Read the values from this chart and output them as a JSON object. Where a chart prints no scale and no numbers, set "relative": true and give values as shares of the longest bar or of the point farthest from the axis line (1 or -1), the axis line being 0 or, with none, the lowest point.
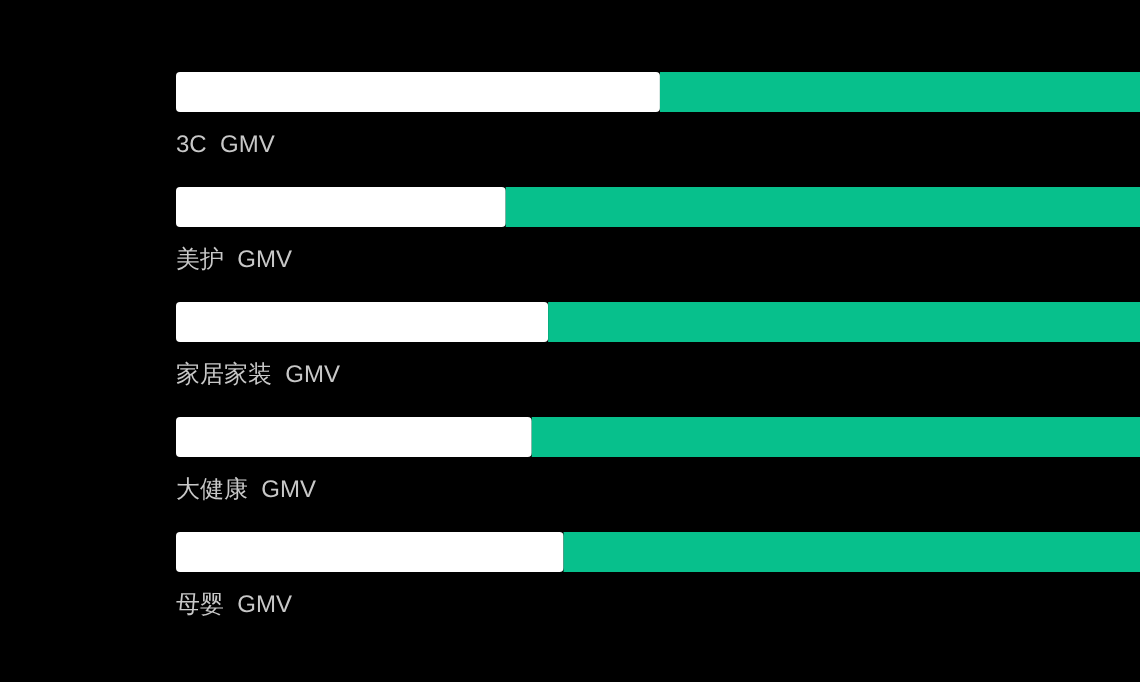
{
  "chart_data": {
    "type": "bar",
    "orientation": "horizontal",
    "stacked": true,
    "relative": true,
    "categories": [
      "3C  GMV",
      "美护  GMV",
      "家居家装  GMV",
      "大健康  GMV",
      "母婴  GMV"
    ],
    "series": [
      {
        "color": "#ffffff",
        "values": [
          0.502,
          0.342,
          0.386,
          0.369,
          0.402
        ]
      },
      {
        "color": "#07c08c",
        "values": [
          0.498,
          0.658,
          0.614,
          0.631,
          0.598
        ]
      }
    ]
  }
}
